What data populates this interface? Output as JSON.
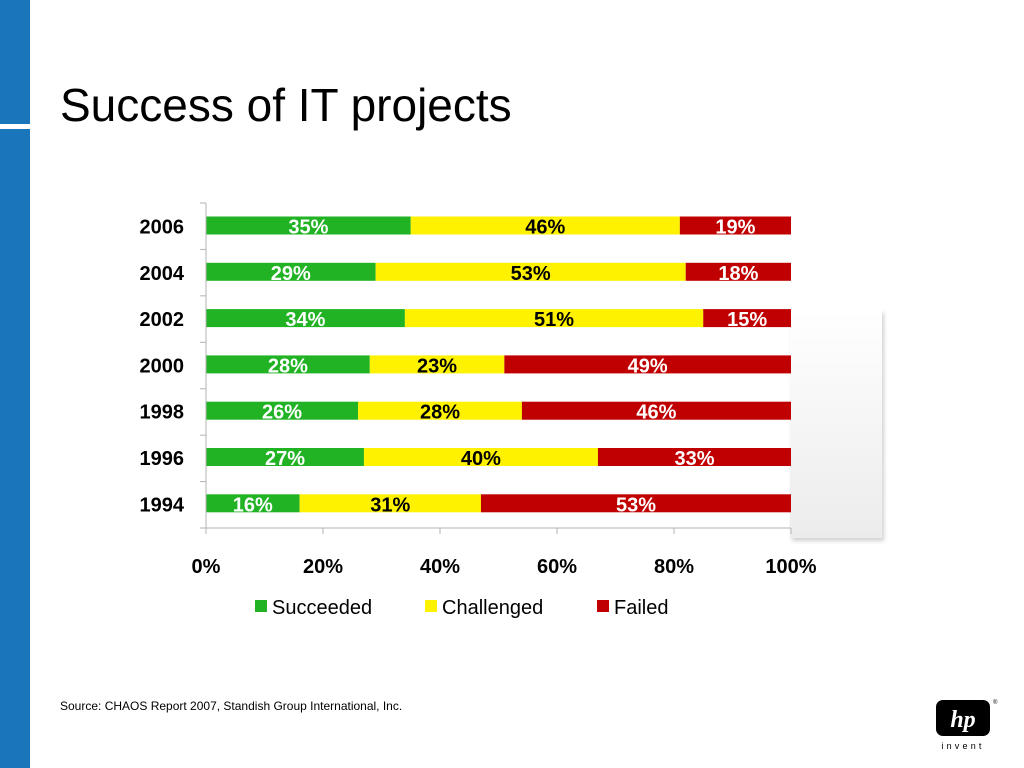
{
  "slide": {
    "title": "Success of IT projects",
    "source": "Source: CHAOS Report 2007, Standish Group International, Inc."
  },
  "logo": {
    "wordmark": "hp",
    "tagline": "invent",
    "registered": "®"
  },
  "colors": {
    "side_bar": "#1a75bb",
    "succeeded": "#22b325",
    "challenged": "#fff200",
    "failed": "#c00000"
  },
  "chart_data": {
    "type": "bar",
    "orientation": "horizontal",
    "stacked": "percent",
    "categories": [
      "2006",
      "2004",
      "2002",
      "2000",
      "1998",
      "1996",
      "1994"
    ],
    "series": [
      {
        "name": "Succeeded",
        "color": "#22b325",
        "label_color": "#ffffff",
        "values": [
          35,
          29,
          34,
          28,
          26,
          27,
          16
        ]
      },
      {
        "name": "Challenged",
        "color": "#fff200",
        "label_color": "#000000",
        "values": [
          46,
          53,
          51,
          23,
          28,
          40,
          31
        ]
      },
      {
        "name": "Failed",
        "color": "#c00000",
        "label_color": "#ffffff",
        "values": [
          19,
          18,
          15,
          49,
          46,
          33,
          53
        ]
      }
    ],
    "data_labels": [
      [
        "35%",
        "46%",
        "19%"
      ],
      [
        "29%",
        "53%",
        "18%"
      ],
      [
        "34%",
        "51%",
        "15%"
      ],
      [
        "28%",
        "23%",
        "49%"
      ],
      [
        "26%",
        "28%",
        "46%"
      ],
      [
        "27%",
        "40%",
        "33%"
      ],
      [
        "16%",
        "31%",
        "53%"
      ]
    ],
    "xlim": [
      0,
      100
    ],
    "xticks": [
      "0%",
      "20%",
      "40%",
      "60%",
      "80%",
      "100%"
    ],
    "legend_position": "bottom",
    "grid": false
  }
}
